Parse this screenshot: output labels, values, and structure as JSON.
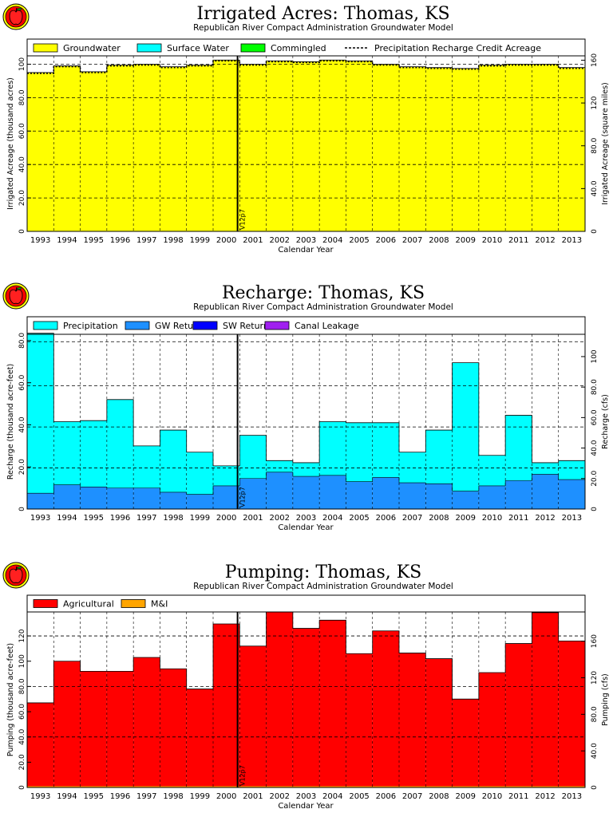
{
  "logo": {
    "icon": "apple-logo-icon"
  },
  "years": [
    "1993",
    "1994",
    "1995",
    "1996",
    "1997",
    "1998",
    "1999",
    "2000",
    "2001",
    "2002",
    "2003",
    "2004",
    "2005",
    "2006",
    "2007",
    "2008",
    "2009",
    "2010",
    "2011",
    "2012",
    "2013"
  ],
  "xlabel": "Calendar Year",
  "marker_label": "V12p7",
  "chart_data": [
    {
      "type": "bar",
      "title": "Irrigated Acres: Thomas, KS",
      "subtitle": "Republican River Compact Administration Groundwater Model",
      "xlabel": "Calendar Year",
      "ylabel": "Irrigated Acreage (thousand acres)",
      "ylabel2": "Irrigated Acreage (square miles)",
      "ylim": [
        0,
        105
      ],
      "yticks": [
        0,
        20,
        40,
        60,
        80,
        100
      ],
      "yticklabels": [
        "0",
        "20.0",
        "40.0",
        "60.0",
        "80.0",
        "100"
      ],
      "y2ticks": [
        0,
        40,
        80,
        120,
        160
      ],
      "y2ticklabels": [
        "0",
        "40.0",
        "80.0",
        "120",
        "160"
      ],
      "y2scale": 1.5625,
      "gridlines": [
        20,
        40,
        60,
        80,
        100
      ],
      "grid": true,
      "legend": [
        "Groundwater",
        "Surface Water",
        "Commingled",
        "Precipitation Recharge Credit Acreage"
      ],
      "legend_placement": "top",
      "colors": {
        "Groundwater": "#ffff00",
        "Surface Water": "#00ffff",
        "Commingled": "#00ff00",
        "Precipitation Recharge Credit Acreage": "#000000"
      },
      "series": [
        {
          "name": "Groundwater",
          "values": [
            95.0,
            99.0,
            95.5,
            99.5,
            100.0,
            98.5,
            99.5,
            102.5,
            100.0,
            102.0,
            101.5,
            102.5,
            102.0,
            100.0,
            98.5,
            98.0,
            97.5,
            99.5,
            100.0,
            100.0,
            98.0
          ]
        },
        {
          "name": "Surface Water",
          "values": [
            0,
            0,
            0,
            0,
            0,
            0,
            0,
            0,
            0,
            0,
            0,
            0,
            0,
            0,
            0,
            0,
            0,
            0,
            0,
            0,
            0
          ]
        },
        {
          "name": "Commingled",
          "values": [
            0,
            0,
            0,
            0,
            0,
            0,
            0,
            0,
            0,
            0,
            0,
            0,
            0,
            0,
            0,
            0,
            0,
            0,
            0,
            0,
            0
          ]
        },
        {
          "name": "Precipitation Recharge Credit Acreage",
          "values": [
            94.5,
            98.5,
            95.0,
            99.0,
            99.5,
            98.0,
            99.0,
            102.0,
            99.5,
            101.5,
            101.0,
            102.0,
            101.5,
            99.5,
            98.0,
            97.5,
            97.0,
            99.0,
            99.5,
            99.5,
            97.5
          ]
        }
      ]
    },
    {
      "type": "bar",
      "title": "Recharge: Thomas, KS",
      "subtitle": "Republican River Compact Administration Groundwater Model",
      "xlabel": "Calendar Year",
      "ylabel": "Recharge (thousand acre-feet)",
      "ylabel2": "Recharge (cfs)",
      "ylim": [
        0,
        83
      ],
      "yticks": [
        0,
        20,
        40,
        60,
        80
      ],
      "yticklabels": [
        "0",
        "20.0",
        "40.0",
        "60.0",
        "80.0"
      ],
      "y2ticks": [
        0,
        20,
        40,
        60,
        80,
        100
      ],
      "y2ticklabels": [
        "0",
        "20.0",
        "40.0",
        "60.0",
        "80.0",
        "100"
      ],
      "y2scale": 1.381,
      "gridlines": [
        19.5,
        39,
        58.5,
        79.5
      ],
      "grid": true,
      "legend": [
        "Precipitation",
        "GW Returns",
        "SW Returns",
        "Canal Leakage"
      ],
      "legend_placement": "top",
      "colors": {
        "Precipitation": "#00ffff",
        "GW Returns": "#1e90ff",
        "SW Returns": "#0000ff",
        "Canal Leakage": "#a020f0"
      },
      "series": [
        {
          "name": "GW Returns",
          "values": [
            7.5,
            11.5,
            10.5,
            10.0,
            10.0,
            8.0,
            7.0,
            11.0,
            14.5,
            17.5,
            15.5,
            16.0,
            13.0,
            15.0,
            12.5,
            12.0,
            8.5,
            11.0,
            13.5,
            16.5,
            14.0
          ]
        },
        {
          "name": "Precipitation",
          "values": [
            76.0,
            30.0,
            31.5,
            42.0,
            20.0,
            29.5,
            20.0,
            9.5,
            20.5,
            5.5,
            6.5,
            25.5,
            28.0,
            26.0,
            14.5,
            25.5,
            61.0,
            14.5,
            31.0,
            5.5,
            9.0
          ]
        },
        {
          "name": "SW Returns",
          "values": [
            0,
            0,
            0,
            0,
            0,
            0,
            0,
            0,
            0,
            0,
            0,
            0,
            0,
            0,
            0,
            0,
            0,
            0,
            0,
            0,
            0
          ]
        },
        {
          "name": "Canal Leakage",
          "values": [
            0,
            0,
            0,
            0,
            0,
            0,
            0,
            0,
            0,
            0,
            0,
            0,
            0,
            0,
            0,
            0,
            0,
            0,
            0,
            0,
            0
          ]
        }
      ]
    },
    {
      "type": "bar",
      "title": "Pumping: Thomas, KS",
      "subtitle": "Republican River Compact Administration Groundwater Model",
      "xlabel": "Calendar Year",
      "ylabel": "Pumping (thousand acre-feet)",
      "ylabel2": "Pumping (cfs)",
      "ylim": [
        0,
        139
      ],
      "yticks": [
        0,
        20,
        40,
        60,
        80,
        100,
        120
      ],
      "yticklabels": [
        "0",
        "20.0",
        "40.0",
        "60.0",
        "80.0",
        "100",
        "120"
      ],
      "y2ticks": [
        0,
        40,
        80,
        120,
        160
      ],
      "y2ticklabels": [
        "0",
        "40.0",
        "80.0",
        "120",
        "160"
      ],
      "y2scale": 1.381,
      "gridlines": [
        40,
        80,
        120
      ],
      "grid": true,
      "legend": [
        "Agricultural",
        "M&I"
      ],
      "legend_placement": "top",
      "colors": {
        "Agricultural": "#ff0000",
        "M&I": "#ffa500"
      },
      "series": [
        {
          "name": "Agricultural",
          "values": [
            67.0,
            100.0,
            92.0,
            92.0,
            103.0,
            94.0,
            78.0,
            129.5,
            112.0,
            139.0,
            126.0,
            132.5,
            106.0,
            124.0,
            106.5,
            102.0,
            70.0,
            91.0,
            114.0,
            138.5,
            116.0
          ]
        },
        {
          "name": "M&I",
          "values": [
            0.4,
            0.4,
            0.4,
            0.4,
            0.4,
            0.4,
            0.4,
            0.4,
            0.4,
            0.4,
            0.4,
            0.4,
            0.4,
            0.4,
            0.4,
            0.4,
            0.4,
            0.4,
            0.4,
            0.4,
            0.4
          ]
        }
      ]
    }
  ]
}
